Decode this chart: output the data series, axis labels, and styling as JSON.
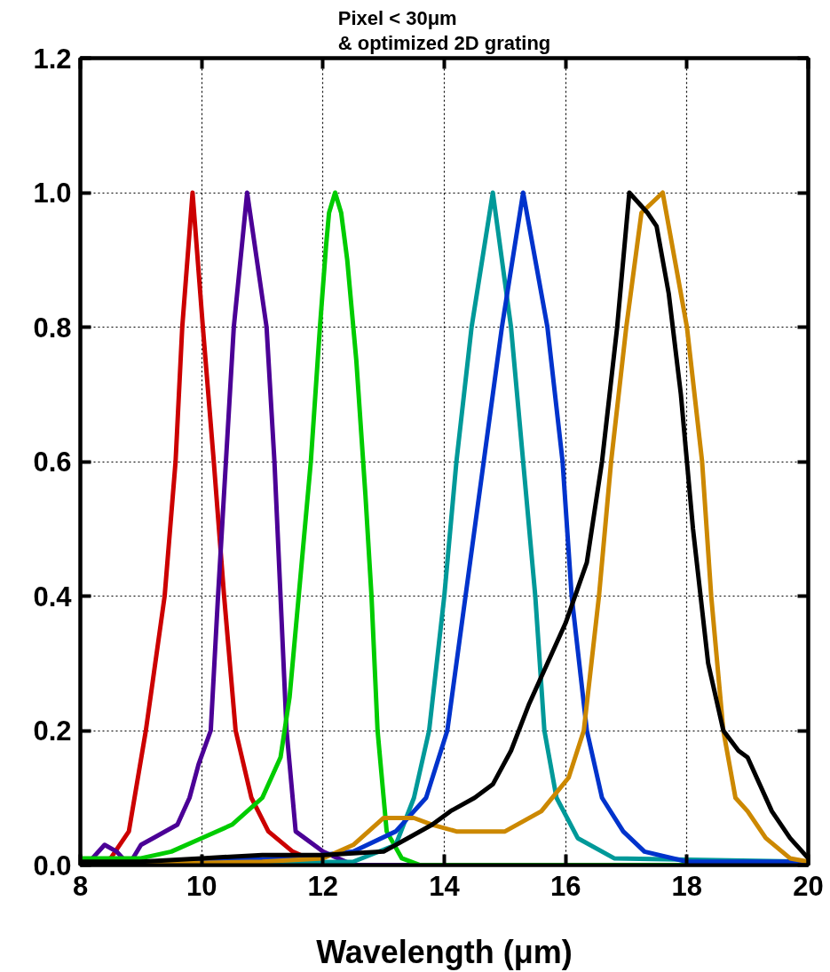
{
  "chart_data": {
    "type": "line",
    "title": "Pixel < 30μm\n& optimized 2D grating",
    "xlabel": "Wavelength (μm)",
    "xlim": [
      8,
      20
    ],
    "ylim": [
      0,
      1.2
    ],
    "xticks": [
      8,
      10,
      12,
      14,
      16,
      18,
      20
    ],
    "yticks": [
      {
        "value": 0,
        "label": "0.0"
      },
      {
        "value": 0.2,
        "label": "0.2"
      },
      {
        "value": 0.4,
        "label": "0.4"
      },
      {
        "value": 0.6,
        "label": "0.6"
      },
      {
        "value": 0.8,
        "label": "0.8"
      },
      {
        "value": 1.0,
        "label": "1.0"
      },
      {
        "value": 1.2,
        "label": "1.2"
      }
    ],
    "grid": true,
    "line_style": "solid",
    "marker": "none",
    "series": [
      {
        "color": "#cc0000",
        "x": [
          8,
          8.5,
          8.8,
          9.08,
          9.39,
          9.57,
          9.68,
          9.85,
          10.02,
          10.2,
          10.37,
          10.56,
          10.82,
          11.1,
          11.5,
          12
        ],
        "values": [
          0,
          0.01,
          0.05,
          0.2,
          0.4,
          0.6,
          0.8,
          1.0,
          0.8,
          0.6,
          0.4,
          0.2,
          0.1,
          0.05,
          0.02,
          0
        ]
      },
      {
        "color": "#4b0096",
        "x": [
          8,
          8.2,
          8.4,
          8.6,
          8.8,
          9.0,
          9.2,
          9.6,
          9.8,
          9.95,
          10.15,
          10.27,
          10.4,
          10.53,
          10.75,
          11.07,
          11.2,
          11.3,
          11.4,
          11.55,
          12,
          12.5,
          20
        ],
        "values": [
          0,
          0.01,
          0.03,
          0.02,
          0,
          0.03,
          0.04,
          0.06,
          0.1,
          0.15,
          0.2,
          0.4,
          0.6,
          0.8,
          1.0,
          0.8,
          0.6,
          0.4,
          0.2,
          0.05,
          0.02,
          0,
          0
        ]
      },
      {
        "color": "#00cc00",
        "x": [
          8,
          9,
          9.5,
          10,
          10.5,
          11,
          11.3,
          11.45,
          11.6,
          11.8,
          11.95,
          12.05,
          12.1,
          12.2,
          12.3,
          12.4,
          12.55,
          12.7,
          12.8,
          12.9,
          13.05,
          13.3,
          13.6,
          20
        ],
        "values": [
          0.01,
          0.01,
          0.02,
          0.04,
          0.06,
          0.1,
          0.16,
          0.25,
          0.4,
          0.6,
          0.8,
          0.92,
          0.97,
          1.0,
          0.97,
          0.9,
          0.75,
          0.55,
          0.4,
          0.2,
          0.05,
          0.01,
          0,
          0
        ]
      },
      {
        "color": "#009999",
        "x": [
          8,
          12.5,
          13.2,
          13.5,
          13.75,
          14.0,
          14.2,
          14.45,
          14.8,
          15.1,
          15.3,
          15.5,
          15.65,
          15.85,
          16.2,
          16.8,
          20
        ],
        "values": [
          0,
          0.005,
          0.03,
          0.1,
          0.2,
          0.4,
          0.6,
          0.8,
          1.0,
          0.8,
          0.6,
          0.4,
          0.2,
          0.1,
          0.04,
          0.01,
          0.005
        ]
      },
      {
        "color": "#0033cc",
        "x": [
          8,
          11.5,
          12.5,
          13.2,
          13.7,
          14.05,
          14.35,
          14.65,
          14.95,
          15.3,
          15.7,
          15.95,
          16.1,
          16.35,
          16.6,
          16.95,
          17.3,
          18,
          20
        ],
        "values": [
          0,
          0.01,
          0.02,
          0.05,
          0.1,
          0.2,
          0.4,
          0.6,
          0.8,
          1.0,
          0.8,
          0.6,
          0.4,
          0.2,
          0.1,
          0.05,
          0.02,
          0.005,
          0.005
        ]
      },
      {
        "color": "#cc8800",
        "x": [
          8,
          11,
          12,
          12.5,
          13.0,
          13.5,
          13.8,
          14.2,
          15.0,
          15.6,
          16.05,
          16.3,
          16.55,
          16.75,
          17.0,
          17.25,
          17.6,
          18.0,
          18.25,
          18.4,
          18.6,
          18.8,
          19.0,
          19.3,
          19.7,
          20
        ],
        "values": [
          0,
          0.005,
          0.01,
          0.03,
          0.07,
          0.07,
          0.06,
          0.05,
          0.05,
          0.08,
          0.13,
          0.2,
          0.4,
          0.6,
          0.8,
          0.97,
          1.0,
          0.8,
          0.6,
          0.4,
          0.2,
          0.1,
          0.08,
          0.04,
          0.01,
          0.005
        ]
      },
      {
        "color": "#000000",
        "x": [
          8,
          9,
          10,
          11,
          12,
          13,
          13.4,
          13.8,
          14.1,
          14.5,
          14.8,
          15.1,
          15.4,
          15.7,
          16.0,
          16.35,
          16.6,
          16.85,
          17.05,
          17.35,
          17.5,
          17.7,
          17.9,
          18.1,
          18.35,
          18.6,
          18.85,
          19.0,
          19.2,
          19.4,
          19.7,
          20
        ],
        "values": [
          0.005,
          0.005,
          0.01,
          0.015,
          0.015,
          0.02,
          0.04,
          0.06,
          0.08,
          0.1,
          0.12,
          0.17,
          0.24,
          0.3,
          0.36,
          0.45,
          0.6,
          0.8,
          1.0,
          0.97,
          0.95,
          0.85,
          0.7,
          0.5,
          0.3,
          0.2,
          0.17,
          0.16,
          0.12,
          0.08,
          0.04,
          0.01
        ]
      }
    ]
  }
}
